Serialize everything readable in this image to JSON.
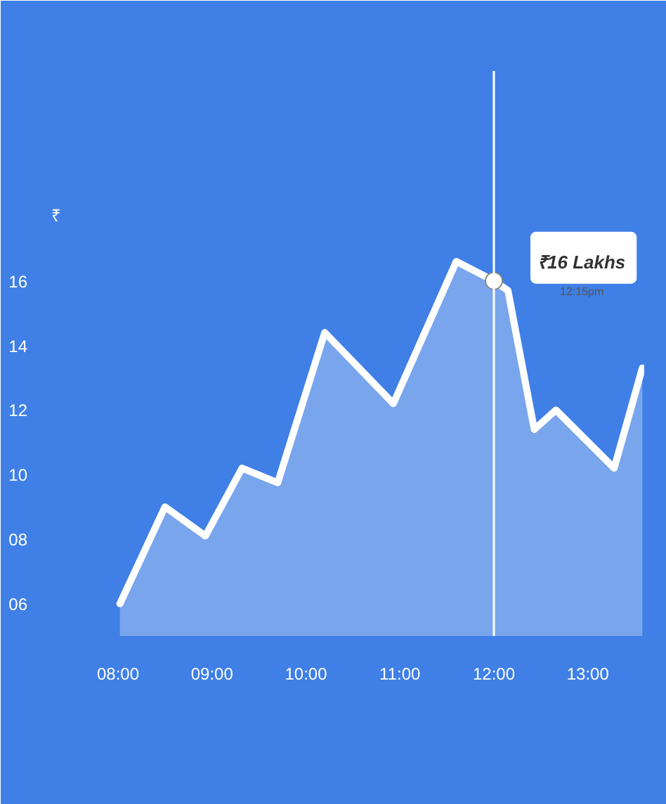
{
  "chart_data": {
    "type": "area",
    "ylabel": "₹",
    "x": [
      8.02,
      8.5,
      8.93,
      9.32,
      9.7,
      10.2,
      10.93,
      11.6,
      12.0,
      12.15,
      12.43,
      12.66,
      13.28,
      13.58
    ],
    "series": [
      {
        "color": "#ffffff",
        "values": [
          6.0,
          9.0,
          8.1,
          10.2,
          9.75,
          14.4,
          12.2,
          16.6,
          16.0,
          15.7,
          11.4,
          12.0,
          10.2,
          13.3
        ]
      }
    ],
    "xlim": [
      7.2,
      13.6
    ],
    "ylim": [
      5.0,
      22.5
    ],
    "xticks": [
      {
        "value": 8,
        "label": "08:00"
      },
      {
        "value": 9,
        "label": "09:00"
      },
      {
        "value": 10,
        "label": "10:00"
      },
      {
        "value": 11,
        "label": "11:00"
      },
      {
        "value": 12,
        "label": "12:00"
      },
      {
        "value": 13,
        "label": "13:00"
      }
    ],
    "yticks": [
      {
        "value": 6,
        "label": "06"
      },
      {
        "value": 8,
        "label": "08"
      },
      10,
      12,
      14,
      16
    ],
    "ref_lines": [
      {
        "axis": "x",
        "value": 12,
        "label": null,
        "color": "#ffffff"
      }
    ],
    "annotations": [
      {
        "text": "₹16 Lakhs",
        "x": 12,
        "y": 16
      },
      "12:15pm"
    ],
    "grid": false
  }
}
